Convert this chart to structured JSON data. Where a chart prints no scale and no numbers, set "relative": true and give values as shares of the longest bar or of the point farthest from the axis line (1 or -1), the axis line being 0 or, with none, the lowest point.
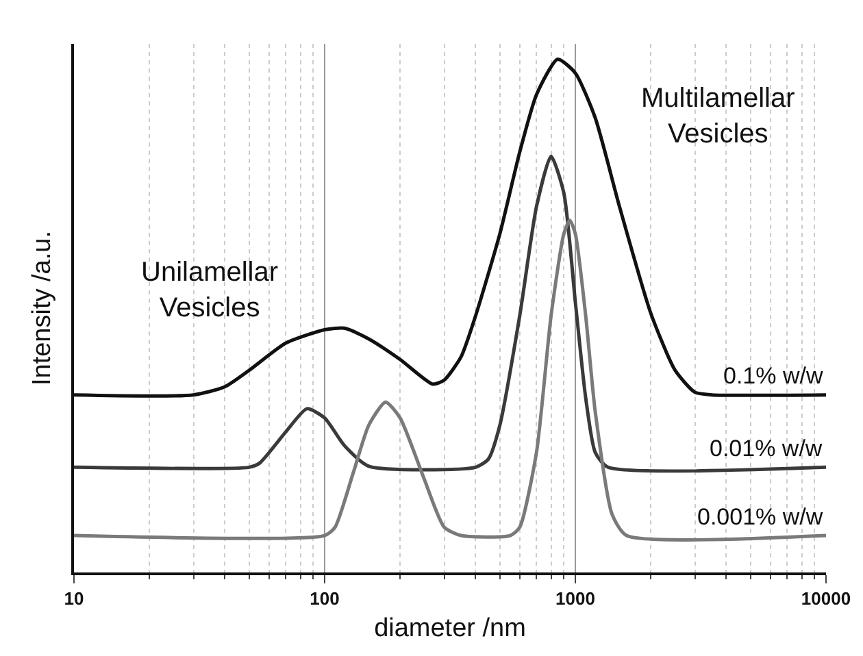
{
  "chart_data": {
    "type": "line",
    "relative": true,
    "log": "x",
    "grid": "x",
    "legend": false,
    "marker": "none",
    "line_style": "solid",
    "xlabel": "diameter /nm",
    "ylabel": "Intensity /a.u.",
    "xlim": [
      10,
      10000
    ],
    "xticks": [
      10,
      100,
      1000,
      10000
    ],
    "annotations": [
      "Unilamellar\nVesicles",
      "Multilamellar\nVesicles"
    ],
    "series": [
      {
        "name": "0.1% w/w",
        "color": "#111111",
        "x": [
          10,
          30,
          40,
          50,
          70,
          100,
          120,
          150,
          200,
          270,
          300,
          350,
          400,
          500,
          600,
          700,
          850,
          1000,
          1200,
          1500,
          2000,
          2500,
          3000,
          3500,
          10000
        ],
        "values": [
          0.346,
          0.346,
          0.362,
          0.394,
          0.447,
          0.473,
          0.476,
          0.455,
          0.415,
          0.367,
          0.375,
          0.42,
          0.5,
          0.66,
          0.819,
          0.931,
          1,
          0.973,
          0.886,
          0.713,
          0.505,
          0.394,
          0.351,
          0.346,
          0.346
        ]
      },
      {
        "name": "0.01% w/w",
        "color": "#3a3a3a",
        "x": [
          10,
          50,
          55,
          70,
          85,
          100,
          120,
          150,
          400,
          450,
          500,
          600,
          700,
          800,
          900,
          1000,
          1100,
          1200,
          1350,
          10000
        ],
        "values": [
          0.205,
          0.205,
          0.213,
          0.274,
          0.319,
          0.301,
          0.247,
          0.207,
          0.205,
          0.221,
          0.287,
          0.5,
          0.713,
          0.811,
          0.739,
          0.527,
          0.34,
          0.234,
          0.205,
          0.205
        ]
      },
      {
        "name": "0.001% w/w",
        "color": "#7a7a7a",
        "x": [
          10,
          100,
          110,
          130,
          150,
          175,
          200,
          250,
          300,
          350,
          550,
          600,
          700,
          800,
          900,
          950,
          1000,
          1100,
          1200,
          1400,
          1600,
          10000
        ],
        "values": [
          0.072,
          0.072,
          0.088,
          0.194,
          0.287,
          0.332,
          0.301,
          0.181,
          0.088,
          0.072,
          0.072,
          0.088,
          0.234,
          0.5,
          0.66,
          0.686,
          0.66,
          0.5,
          0.314,
          0.114,
          0.072,
          0.072
        ]
      }
    ]
  }
}
